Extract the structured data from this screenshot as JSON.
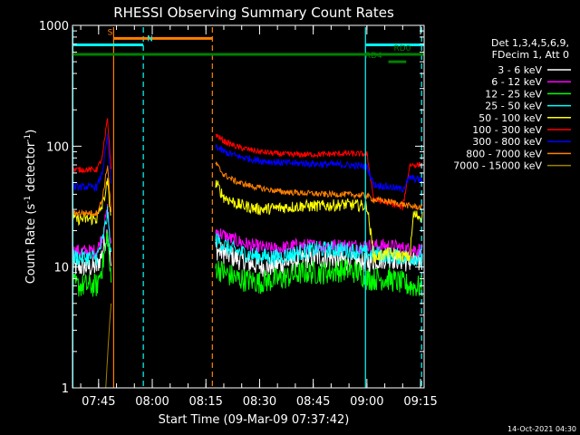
{
  "chart_data": {
    "type": "line",
    "title": "RHESSI Observing Summary Count Rates",
    "xlabel": "Start Time (09-Mar-09 07:37:42)",
    "ylabel_base": "Count Rate (s",
    "ylabel_sup": "-1",
    "ylabel_tail": " detector",
    "ylabel_end": ")",
    "footer_date": "14-Oct-2021 04:30",
    "x_range_minutes_after_0700": [
      37.7,
      136.0
    ],
    "y_scale": "log",
    "ylim": [
      1,
      1000
    ],
    "x_ticks": [
      {
        "label": "07:45",
        "minute": 45
      },
      {
        "label": "08:00",
        "minute": 60
      },
      {
        "label": "08:15",
        "minute": 75
      },
      {
        "label": "08:30",
        "minute": 90
      },
      {
        "label": "08:45",
        "minute": 105
      },
      {
        "label": "09:00",
        "minute": 120
      },
      {
        "label": "09:15",
        "minute": 135
      }
    ],
    "y_ticks": [
      {
        "label": "1000",
        "value": 1000
      },
      {
        "label": "100",
        "value": 100
      },
      {
        "label": "10",
        "value": 10
      },
      {
        "label": "1",
        "value": 1
      }
    ],
    "legend": {
      "header_1": "Det 1,3,4,5,6,9,",
      "header_2": "FDecim 1, Att 0"
    },
    "series": [
      {
        "name": "3 - 6 keV",
        "color": "#ffffff",
        "noise": 0.09,
        "points": [
          [
            37.7,
            10
          ],
          [
            44.5,
            10
          ],
          [
            46,
            13
          ],
          [
            47.5,
            20
          ],
          [
            48.5,
            10
          ],
          [
            48.7,
            null
          ],
          [
            77.5,
            null
          ],
          [
            77.7,
            14
          ],
          [
            80,
            13
          ],
          [
            86,
            11
          ],
          [
            92,
            10
          ],
          [
            98,
            11
          ],
          [
            104,
            12
          ],
          [
            110,
            12
          ],
          [
            116,
            11
          ],
          [
            120,
            11
          ],
          [
            126,
            12
          ],
          [
            132,
            11
          ],
          [
            135.5,
            11
          ]
        ]
      },
      {
        "name": "6 - 12 keV",
        "color": "#ff00ff",
        "noise": 0.06,
        "points": [
          [
            37.7,
            13.5
          ],
          [
            44.5,
            13.5
          ],
          [
            46,
            18
          ],
          [
            47.5,
            30
          ],
          [
            48.5,
            14
          ],
          [
            48.7,
            null
          ],
          [
            77.5,
            null
          ],
          [
            77.7,
            20
          ],
          [
            82,
            17
          ],
          [
            88,
            15
          ],
          [
            94,
            14
          ],
          [
            100,
            15
          ],
          [
            106,
            15
          ],
          [
            112,
            15
          ],
          [
            118,
            15
          ],
          [
            120,
            15
          ],
          [
            126,
            15
          ],
          [
            132,
            14
          ],
          [
            135.5,
            14
          ]
        ]
      },
      {
        "name": "12 - 25 keV",
        "color": "#00ff00",
        "noise": 0.1,
        "points": [
          [
            37.7,
            7
          ],
          [
            44.5,
            7
          ],
          [
            46,
            10
          ],
          [
            47.5,
            18
          ],
          [
            48.5,
            7
          ],
          [
            48.7,
            null
          ],
          [
            77.5,
            null
          ],
          [
            77.7,
            10
          ],
          [
            80,
            9
          ],
          [
            84,
            8
          ],
          [
            90,
            7.5
          ],
          [
            96,
            8
          ],
          [
            102,
            9
          ],
          [
            108,
            9
          ],
          [
            114,
            9.5
          ],
          [
            118,
            9
          ],
          [
            120,
            8
          ],
          [
            126,
            8
          ],
          [
            132,
            7
          ],
          [
            135.5,
            6.8
          ]
        ]
      },
      {
        "name": "25 - 50 keV",
        "color": "#00ffff",
        "noise": 0.07,
        "points": [
          [
            37.7,
            12
          ],
          [
            44.5,
            12
          ],
          [
            46,
            16
          ],
          [
            47.5,
            28
          ],
          [
            48.5,
            12
          ],
          [
            48.7,
            null
          ],
          [
            77.5,
            null
          ],
          [
            77.7,
            17
          ],
          [
            82,
            14
          ],
          [
            88,
            12.5
          ],
          [
            94,
            12
          ],
          [
            100,
            13
          ],
          [
            106,
            14
          ],
          [
            112,
            14
          ],
          [
            118,
            13.5
          ],
          [
            120,
            13
          ],
          [
            126,
            12.5
          ],
          [
            132,
            12
          ],
          [
            135.5,
            12
          ]
        ]
      },
      {
        "name": "50 - 100 keV",
        "color": "#ffff00",
        "noise": 0.05,
        "points": [
          [
            37.7,
            25
          ],
          [
            44.5,
            25
          ],
          [
            46,
            32
          ],
          [
            47.5,
            50
          ],
          [
            48.5,
            25
          ],
          [
            48.7,
            null
          ],
          [
            77.5,
            null
          ],
          [
            77.7,
            50
          ],
          [
            80,
            38
          ],
          [
            84,
            33
          ],
          [
            90,
            30
          ],
          [
            96,
            31
          ],
          [
            102,
            32
          ],
          [
            108,
            32
          ],
          [
            114,
            33
          ],
          [
            120,
            32
          ],
          [
            122,
            12
          ],
          [
            126,
            13
          ],
          [
            132,
            12
          ],
          [
            133,
            27
          ],
          [
            135.5,
            26
          ]
        ]
      },
      {
        "name": "100 - 300 keV",
        "color": "#ff0000",
        "noise": 0.025,
        "points": [
          [
            37.7,
            64
          ],
          [
            44.5,
            64
          ],
          [
            46,
            80
          ],
          [
            47.5,
            170
          ],
          [
            48.5,
            64
          ],
          [
            48.7,
            null
          ],
          [
            77.5,
            null
          ],
          [
            77.7,
            125
          ],
          [
            80,
            110
          ],
          [
            84,
            98
          ],
          [
            90,
            90
          ],
          [
            96,
            86
          ],
          [
            102,
            85
          ],
          [
            108,
            86
          ],
          [
            114,
            87
          ],
          [
            120,
            86
          ],
          [
            122,
            36
          ],
          [
            126,
            34
          ],
          [
            130,
            31
          ],
          [
            132,
            70
          ],
          [
            135.5,
            70
          ]
        ]
      },
      {
        "name": "300 - 800 keV",
        "color": "#0000ff",
        "noise": 0.03,
        "points": [
          [
            37.7,
            46
          ],
          [
            44.5,
            46
          ],
          [
            46,
            60
          ],
          [
            47.5,
            120
          ],
          [
            48.5,
            46
          ],
          [
            48.7,
            null
          ],
          [
            77.5,
            null
          ],
          [
            77.7,
            100
          ],
          [
            80,
            90
          ],
          [
            84,
            82
          ],
          [
            90,
            76
          ],
          [
            96,
            73
          ],
          [
            102,
            72
          ],
          [
            108,
            71
          ],
          [
            114,
            70
          ],
          [
            120,
            68
          ],
          [
            122,
            48
          ],
          [
            126,
            46
          ],
          [
            130,
            44
          ],
          [
            132,
            55
          ],
          [
            135.5,
            52
          ]
        ]
      },
      {
        "name": "800 - 7000 keV",
        "color": "#ff8000",
        "noise": 0.025,
        "points": [
          [
            37.7,
            28
          ],
          [
            44.5,
            28
          ],
          [
            46,
            36
          ],
          [
            47.5,
            70
          ],
          [
            48.5,
            28
          ],
          [
            48.7,
            null
          ],
          [
            77.5,
            null
          ],
          [
            77.7,
            72
          ],
          [
            80,
            58
          ],
          [
            84,
            50
          ],
          [
            90,
            45
          ],
          [
            96,
            42
          ],
          [
            102,
            41
          ],
          [
            108,
            40
          ],
          [
            114,
            40
          ],
          [
            120,
            39
          ],
          [
            122,
            36
          ],
          [
            126,
            35
          ],
          [
            130,
            33
          ],
          [
            132,
            32
          ],
          [
            135.5,
            31
          ]
        ]
      },
      {
        "name": "7000 - 15000 keV",
        "color": "#a08000",
        "noise": 0,
        "points": [
          [
            47,
            1
          ],
          [
            47.5,
            1.8
          ],
          [
            48,
            3.2
          ],
          [
            48.5,
            5
          ],
          [
            48.7,
            null
          ]
        ]
      }
    ],
    "markers": {
      "vertical_lines": [
        {
          "minute": 37.8,
          "color": "#00ffff",
          "style": "solid"
        },
        {
          "minute": 49.2,
          "color": "#ff8000",
          "style": "solid"
        },
        {
          "minute": 57.5,
          "color": "#00ffff",
          "style": "dashed"
        },
        {
          "minute": 76.8,
          "color": "#ff8000",
          "style": "dashed"
        },
        {
          "minute": 119.6,
          "color": "#00ffff",
          "style": "solid"
        },
        {
          "minute": 135.3,
          "color": "#00ffff",
          "style": "dashed"
        }
      ],
      "flag_bars": [
        {
          "label": "S",
          "color": "#ff8000",
          "y": 780,
          "start": 49.2,
          "end": 76.8,
          "label_minute": 47.5
        },
        {
          "label": "N",
          "color": "#00ffff",
          "y": 690,
          "start": 37.8,
          "end": 57.5,
          "label_minute": 58.5
        },
        {
          "label": "",
          "color": "#00ffff",
          "y": 690,
          "start": 119.6,
          "end": 136.0,
          "label_minute": 0
        },
        {
          "label": "",
          "color": "#008000",
          "y": 575,
          "start": 37.8,
          "end": 136.0,
          "label_minute": 0
        },
        {
          "label": "RD0",
          "color": "#008000",
          "y": 575,
          "start": 130,
          "end": 136.0,
          "label_minute": 127.5
        },
        {
          "label": "RD4",
          "color": "#008000",
          "y": 500,
          "start": 126,
          "end": 131,
          "label_minute": 119.5
        }
      ]
    }
  }
}
